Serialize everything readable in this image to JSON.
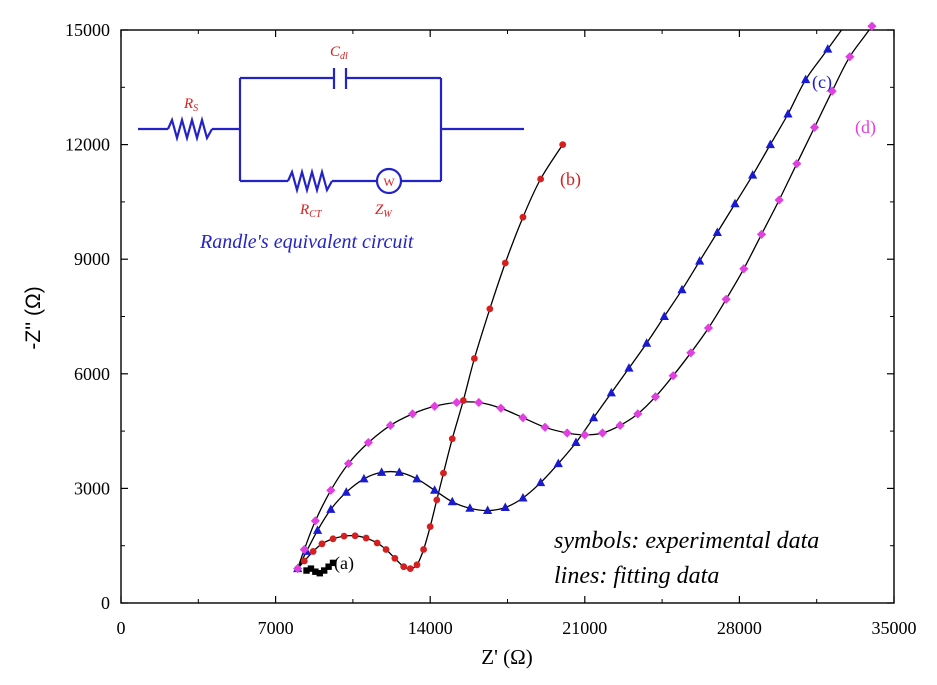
{
  "chart_data": {
    "type": "scatter",
    "title": "",
    "xlabel": "Z' (Ω)",
    "ylabel": "-Z'' (Ω)",
    "xlim": [
      0,
      35000
    ],
    "ylim": [
      0,
      15000
    ],
    "x_ticks": [
      "0",
      "7000",
      "14000",
      "21000",
      "28000",
      "35000"
    ],
    "y_ticks": [
      "0",
      "3000",
      "6000",
      "9000",
      "12000",
      "15000"
    ],
    "grid": false,
    "series": [
      {
        "name": "(a)",
        "marker": "square",
        "color": "#000000",
        "x": [
          8400,
          8600,
          8800,
          9000,
          9200,
          9400,
          9600
        ],
        "y": [
          850,
          900,
          820,
          780,
          850,
          950,
          1050
        ]
      },
      {
        "name": "(b)",
        "marker": "circle",
        "color": "#d42020",
        "x": [
          8000,
          8300,
          8700,
          9100,
          9600,
          10100,
          10600,
          11100,
          11600,
          12000,
          12400,
          12800,
          13100,
          13400,
          13700,
          14000,
          14300,
          14600,
          15000,
          15500,
          16000,
          16700,
          17400,
          18200,
          19000,
          20000
        ],
        "y": [
          900,
          1100,
          1350,
          1550,
          1680,
          1750,
          1760,
          1700,
          1570,
          1400,
          1170,
          950,
          900,
          1000,
          1400,
          2000,
          2700,
          3400,
          4300,
          5300,
          6400,
          7700,
          8900,
          10100,
          11100,
          12000
        ]
      },
      {
        "name": "(c)",
        "marker": "triangle",
        "color": "#1a1ad0",
        "x": [
          8000,
          8400,
          8900,
          9500,
          10200,
          11000,
          11800,
          12600,
          13400,
          14200,
          15000,
          15800,
          16600,
          17400,
          18200,
          19000,
          19800,
          20600,
          21400,
          22200,
          23000,
          23800,
          24600,
          25400,
          26200,
          27000,
          27800,
          28600,
          29400,
          30200,
          31000,
          32000
        ],
        "y": [
          900,
          1350,
          1900,
          2450,
          2900,
          3250,
          3420,
          3420,
          3250,
          2950,
          2650,
          2480,
          2420,
          2500,
          2750,
          3150,
          3650,
          4200,
          4850,
          5500,
          6150,
          6800,
          7500,
          8200,
          8950,
          9700,
          10450,
          11200,
          12000,
          12800,
          13700,
          14500
        ]
      },
      {
        "name": "(d)",
        "marker": "diamond",
        "color": "#e040e0",
        "x": [
          8000,
          8300,
          8800,
          9500,
          10300,
          11200,
          12200,
          13200,
          14200,
          15200,
          16200,
          17200,
          18200,
          19200,
          20200,
          21000,
          21800,
          22600,
          23400,
          24200,
          25000,
          25800,
          26600,
          27400,
          28200,
          29000,
          29800,
          30600,
          31400,
          32200,
          33000,
          34000
        ],
        "y": [
          900,
          1400,
          2150,
          2950,
          3650,
          4200,
          4650,
          4950,
          5150,
          5250,
          5250,
          5100,
          4850,
          4600,
          4450,
          4400,
          4450,
          4650,
          4950,
          5400,
          5950,
          6550,
          7200,
          7950,
          8750,
          9650,
          10550,
          11500,
          12450,
          13400,
          14300,
          15100
        ]
      }
    ],
    "annotations": [
      "symbols: experimental data",
      "lines: fitting data"
    ]
  },
  "circuit": {
    "rs": "R",
    "rs_sub": "S",
    "cdl": "C",
    "cdl_sub": "dl",
    "rct": "R",
    "rct_sub": "CT",
    "zw": "Z",
    "zw_sub": "W",
    "w": "W",
    "title": "Randle's equivalent circuit"
  }
}
